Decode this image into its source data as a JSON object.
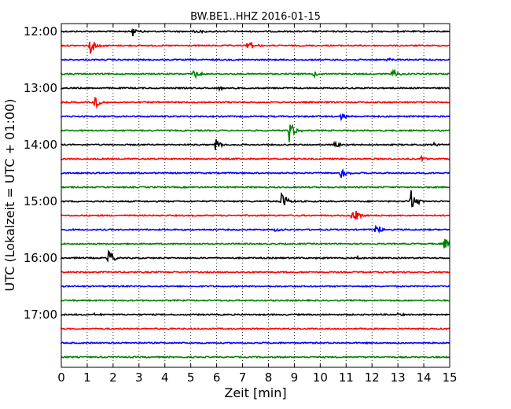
{
  "chart_data": {
    "type": "line",
    "title": "BW.BE1..HHZ 2016-01-15",
    "xlabel": "Zeit  [min]",
    "ylabel": "UTC (Lokalzeit = UTC + 01:00)",
    "xlim": [
      0,
      15
    ],
    "x_ticks": [
      "0",
      "1",
      "2",
      "3",
      "4",
      "5",
      "6",
      "7",
      "8",
      "9",
      "10",
      "11",
      "12",
      "13",
      "14",
      "15"
    ],
    "y_ticks": [
      "12:00",
      "13:00",
      "14:00",
      "15:00",
      "16:00",
      "17:00"
    ],
    "grid": "vertical dotted",
    "trace_minutes": 15,
    "start_time": "12:00",
    "series": [
      {
        "time": "12:00",
        "color": "#000000",
        "events": [
          {
            "min": 2.75,
            "amp": 6
          },
          {
            "min": 5.15,
            "amp": 4
          }
        ]
      },
      {
        "time": "12:15",
        "color": "#ff0000",
        "events": [
          {
            "min": 1.1,
            "amp": 12
          },
          {
            "min": 7.2,
            "amp": 11
          }
        ]
      },
      {
        "time": "12:30",
        "color": "#0000ff",
        "events": [
          {
            "min": 12.6,
            "amp": 3
          }
        ]
      },
      {
        "time": "12:45",
        "color": "#008000",
        "events": [
          {
            "min": 5.05,
            "amp": 9
          },
          {
            "min": 9.75,
            "amp": 4
          },
          {
            "min": 12.8,
            "amp": 7
          }
        ]
      },
      {
        "time": "13:00",
        "color": "#000000",
        "events": [
          {
            "min": 6.1,
            "amp": 3
          }
        ]
      },
      {
        "time": "13:15",
        "color": "#ff0000",
        "events": [
          {
            "min": 1.3,
            "amp": 9
          }
        ]
      },
      {
        "time": "13:30",
        "color": "#0000ff",
        "events": [
          {
            "min": 10.8,
            "amp": 5
          }
        ]
      },
      {
        "time": "13:45",
        "color": "#008000",
        "events": [
          {
            "min": 8.8,
            "amp": 16
          }
        ]
      },
      {
        "time": "14:00",
        "color": "#000000",
        "events": [
          {
            "min": 5.95,
            "amp": 10
          },
          {
            "min": 10.55,
            "amp": 6
          },
          {
            "min": 14.4,
            "amp": 3
          }
        ]
      },
      {
        "time": "14:15",
        "color": "#ff0000",
        "events": [
          {
            "min": 13.9,
            "amp": 3
          }
        ]
      },
      {
        "time": "14:30",
        "color": "#0000ff",
        "events": [
          {
            "min": 10.8,
            "amp": 8
          }
        ]
      },
      {
        "time": "14:45",
        "color": "#008000",
        "events": []
      },
      {
        "time": "15:00",
        "color": "#000000",
        "events": [
          {
            "min": 8.5,
            "amp": 15
          },
          {
            "min": 13.5,
            "amp": 16
          }
        ]
      },
      {
        "time": "15:15",
        "color": "#ff0000",
        "events": [
          {
            "min": 11.25,
            "amp": 22
          }
        ]
      },
      {
        "time": "15:30",
        "color": "#0000ff",
        "events": [
          {
            "min": 8.25,
            "amp": 4
          },
          {
            "min": 12.15,
            "amp": 9
          }
        ]
      },
      {
        "time": "15:45",
        "color": "#008000",
        "events": [
          {
            "min": 14.8,
            "amp": 9
          }
        ]
      },
      {
        "time": "16:00",
        "color": "#000000",
        "events": [
          {
            "min": 1.8,
            "amp": 14
          },
          {
            "min": 9.75,
            "amp": 3
          },
          {
            "min": 11.45,
            "amp": 3
          }
        ]
      },
      {
        "time": "16:15",
        "color": "#ff0000",
        "events": []
      },
      {
        "time": "16:30",
        "color": "#0000ff",
        "events": []
      },
      {
        "time": "16:45",
        "color": "#008000",
        "events": []
      },
      {
        "time": "17:00",
        "color": "#000000",
        "events": [
          {
            "min": 1.3,
            "amp": 2
          },
          {
            "min": 13.0,
            "amp": 2
          }
        ]
      },
      {
        "time": "17:15",
        "color": "#ff0000",
        "events": []
      },
      {
        "time": "17:30",
        "color": "#0000ff",
        "events": []
      },
      {
        "time": "17:45",
        "color": "#008000",
        "events": []
      }
    ]
  }
}
